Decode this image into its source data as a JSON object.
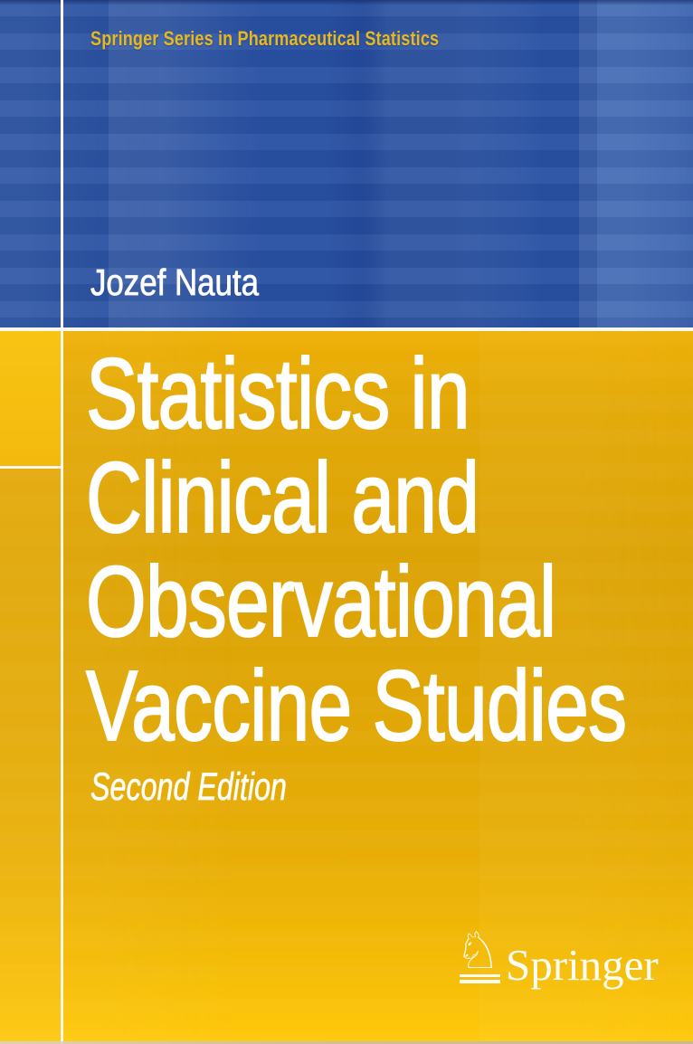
{
  "cover": {
    "series_title": "Springer Series in Pharmaceutical Statistics",
    "author": "Jozef Nauta",
    "title_lines": [
      "Statistics in",
      "Clinical and",
      "Observational",
      "Vaccine Studies"
    ],
    "edition": "Second Edition",
    "publisher": {
      "name": "Springer",
      "logo_icon": "springer-horse-knight-icon",
      "horse_glyph": "♘"
    },
    "colors": {
      "panel_blue": "#2951A3",
      "panel_gold": "#DFA506",
      "panel_gold_bottom": "#FFC90C",
      "left_accent_gold": "#F5BE10",
      "series_title_text": "#E7B820",
      "title_text": "#FFFFFF",
      "divider_line": "#FAF7EA"
    }
  }
}
